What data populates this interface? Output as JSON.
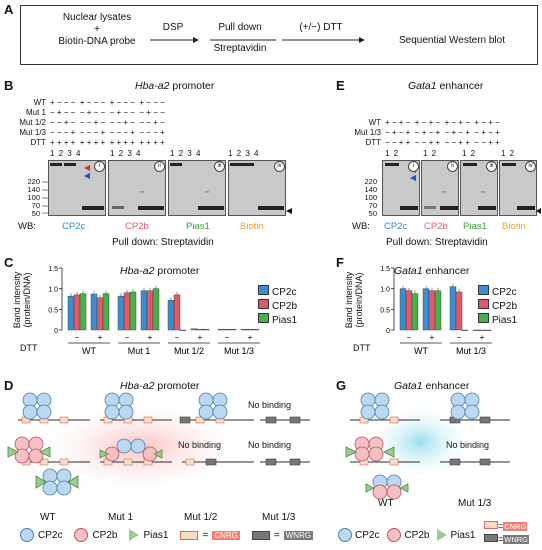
{
  "panels": {
    "A": "A",
    "B": "B",
    "C": "C",
    "D": "D",
    "E": "E",
    "F": "F",
    "G": "G"
  },
  "flow": {
    "step1": "Nuclear lysates\n+\nBiotin-DNA probe",
    "arrow1_top": "DSP",
    "step2_top": "Pull down",
    "step2_bottom": "Streptavidin",
    "arrow3_top": "(+/−) DTT",
    "step3": "Sequential Western blot"
  },
  "B": {
    "title_gene": "Hba-a2",
    "title_rest": " promoter",
    "row_labels": [
      "WT",
      "Mut 1",
      "Mut 1/2",
      "Mut 1/3",
      "DTT"
    ],
    "signs": [
      "+ − − −  + − − −  + − − −  + − − −",
      "− + − −  − + − −  − + − −  − + − −",
      "− − + −  − − + −  − − + −  − − + −",
      "− − − +  − − − +  − − − +  − − − +",
      "+ + + +  + + + +  + + + +  + + + +"
    ],
    "lanes": "1 2 3 4",
    "mw": [
      "220",
      "140",
      "100",
      "70",
      "50"
    ],
    "roman": [
      "i",
      "ii",
      "iii",
      "iv"
    ],
    "wb_prefix": "WB:",
    "wb": [
      "CP2c",
      "CP2b",
      "Pias1",
      "Biotin"
    ],
    "pulldown": "Pull down: Streptavidin"
  },
  "E": {
    "title_gene": "Gata1",
    "title_rest": " enhancer",
    "row_labels": [
      "WT",
      "Mut 1/3",
      "DTT"
    ],
    "signs": [
      "+ − + −  + − + −  + − + −  + − + −",
      "− + − +  − + − +  − + − +  − + − +",
      "− − + +  − − + +  − − + +  − − + +"
    ],
    "lanes": "1 2",
    "mw": [
      "220",
      "140",
      "100",
      "70",
      "50"
    ],
    "roman": [
      "i",
      "ii",
      "iii",
      "iv"
    ],
    "wb_prefix": "WB:",
    "wb": [
      "CP2c",
      "CP2b",
      "Pias1",
      "Biotin"
    ],
    "pulldown": "Pull down: Streptavidin"
  },
  "colors": {
    "cp2c": "#3a8fd0",
    "cp2b": "#e05a6a",
    "pias1": "#48b048",
    "biotin": "#f0a030",
    "cnrg": "#f08070",
    "wnrg": "#7a7a7a"
  },
  "C": {
    "title_gene": "Hba-a2",
    "title_rest": " promoter",
    "ylabel": "Band intensity\n(protein/DNA)",
    "dtt_label": "DTT",
    "dtt_signs": [
      "−",
      "+",
      "−",
      "+",
      "−",
      "+",
      "−",
      "+"
    ],
    "groups": [
      "WT",
      "Mut 1",
      "Mut 1/2",
      "Mut 1/3"
    ],
    "yticks": [
      "0",
      "0.5",
      "1.0",
      "1.5"
    ],
    "legend": [
      "CP2c",
      "CP2b",
      "Pias1"
    ]
  },
  "F": {
    "title_gene": "Gata1",
    "title_rest": " enhancer",
    "ylabel": "Band intensity\n(protein/DNA)",
    "dtt_label": "DTT",
    "dtt_signs": [
      "−",
      "+",
      "−",
      "+"
    ],
    "groups": [
      "WT",
      "Mut 1/3"
    ],
    "yticks": [
      "0",
      "0.5",
      "1.0",
      "1.5"
    ],
    "legend": [
      "CP2c",
      "CP2b",
      "Pias1"
    ]
  },
  "chart_data": [
    {
      "type": "bar",
      "title": "Hba-a2 promoter",
      "ylabel": "Band intensity (protein/DNA)",
      "ylim": [
        0,
        1.5
      ],
      "categories": [
        "WT −",
        "WT +",
        "Mut 1 −",
        "Mut 1 +",
        "Mut 1/2 −",
        "Mut 1/2 +",
        "Mut 1/3 −",
        "Mut 1/3 +"
      ],
      "series": [
        {
          "name": "CP2c",
          "values": [
            0.82,
            0.87,
            0.82,
            0.95,
            0.72,
            0.03,
            0.02,
            0.02
          ]
        },
        {
          "name": "CP2b",
          "values": [
            0.85,
            0.78,
            0.9,
            0.95,
            0.85,
            0.02,
            0.02,
            0.02
          ]
        },
        {
          "name": "Pias1",
          "values": [
            0.88,
            0.88,
            0.92,
            1.0,
            0.0,
            0.02,
            0.02,
            0.02
          ]
        }
      ]
    },
    {
      "type": "bar",
      "title": "Gata1 enhancer",
      "ylabel": "Band intensity (protein/DNA)",
      "ylim": [
        0,
        1.5
      ],
      "categories": [
        "WT −",
        "WT +",
        "Mut 1/3 −",
        "Mut 1/3 +"
      ],
      "series": [
        {
          "name": "CP2c",
          "values": [
            1.0,
            1.0,
            1.05,
            0.0
          ]
        },
        {
          "name": "CP2b",
          "values": [
            0.95,
            0.95,
            0.92,
            0.0
          ]
        },
        {
          "name": "Pias1",
          "values": [
            0.88,
            0.95,
            0.0,
            0.0
          ]
        }
      ]
    }
  ],
  "D": {
    "title_gene": "Hba-a2",
    "title_rest": " promoter",
    "no_binding": "No binding",
    "groups": [
      "WT",
      "Mut 1",
      "Mut 1/2",
      "Mut 1/3"
    ],
    "legend": {
      "cp2c": "CP2c",
      "cp2b": "CP2b",
      "pias1": "Pias1",
      "eq1": "=",
      "cnrg": "CNRG",
      "eq2": "=",
      "wnrg": "WNRG"
    }
  },
  "G": {
    "title_gene": "Gata1",
    "title_rest": " enhancer",
    "no_binding": "No binding",
    "groups": [
      "WT",
      "Mut 1/3"
    ],
    "legend": {
      "cp2c": "CP2c",
      "cp2b": "CP2b",
      "pias1": "Pias1",
      "eq1": "=",
      "cnrg": "CNRG",
      "eq2": "=",
      "wnrg": "WNRG"
    }
  }
}
